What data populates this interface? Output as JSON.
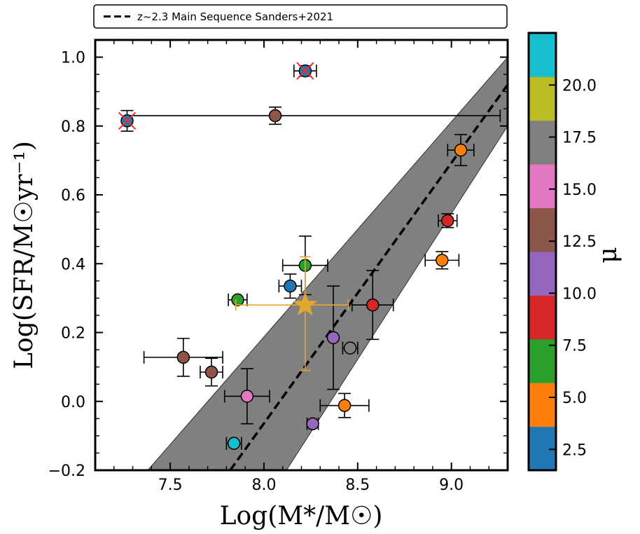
{
  "chart_data": {
    "type": "scatter",
    "title": "",
    "xlabel": "Log(M*/M☉)",
    "ylabel": "Log(SFR/M☉yr⁻¹)",
    "xlim": [
      7.1,
      9.3
    ],
    "ylim": [
      -0.2,
      1.05
    ],
    "x_ticks": [
      7.5,
      8.0,
      8.5,
      9.0
    ],
    "y_ticks": [
      -0.2,
      0.0,
      0.2,
      0.4,
      0.6,
      0.8,
      1.0
    ],
    "x_tick_labels": [
      "7.5",
      "8.0",
      "8.5",
      "9.0"
    ],
    "y_tick_labels": [
      "−0.2",
      "0.0",
      "0.2",
      "0.4",
      "0.6",
      "0.8",
      "1.0"
    ],
    "legend": {
      "position": "top",
      "entries": [
        {
          "label": "z~2.3 Main Sequence Sanders+2021",
          "style": "dashed",
          "color": "#000000"
        }
      ]
    },
    "main_sequence": {
      "label": "z~2.3 Main Sequence Sanders+2021",
      "line": [
        [
          7.82,
          -0.2
        ],
        [
          9.3,
          0.92
        ]
      ],
      "band_upper": [
        [
          7.38,
          -0.2
        ],
        [
          9.3,
          1.0
        ]
      ],
      "band_lower": [
        [
          8.12,
          -0.2
        ],
        [
          9.3,
          0.8
        ]
      ],
      "band_color": "#808080"
    },
    "points": [
      {
        "x": 7.27,
        "y": 0.815,
        "xerr": 0,
        "yerr": 0.03,
        "color": "#1f77b4",
        "crossed": true
      },
      {
        "x": 8.22,
        "y": 0.96,
        "xerr": 0.06,
        "yerr": 0.015,
        "color": "#1f77b4",
        "crossed": true
      },
      {
        "x": 8.06,
        "y": 0.83,
        "xerr": 0,
        "yerr": 0.025,
        "color": "#8c564b"
      },
      {
        "x": 9.05,
        "y": 0.73,
        "xerr": 0.07,
        "yerr": 0.045,
        "color": "#ff7f0e"
      },
      {
        "x": 8.98,
        "y": 0.525,
        "xerr": 0.05,
        "yerr": 0.02,
        "color": "#d62728"
      },
      {
        "x": 8.95,
        "y": 0.41,
        "xerr": 0.09,
        "yerr": 0.025,
        "color": "#ff7f0e"
      },
      {
        "x": 8.22,
        "y": 0.395,
        "xerr": 0.12,
        "yerr": 0.085,
        "color": "#2ca02c"
      },
      {
        "x": 8.14,
        "y": 0.335,
        "xerr": 0.06,
        "yerr": 0.035,
        "color": "#1f77b4"
      },
      {
        "x": 7.86,
        "y": 0.295,
        "xerr": 0.05,
        "yerr": 0,
        "color": "#2ca02c"
      },
      {
        "x": 8.58,
        "y": 0.28,
        "xerr": 0.11,
        "yerr": 0.1,
        "color": "#d62728"
      },
      {
        "x": 8.37,
        "y": 0.185,
        "xerr": 0,
        "yerr": 0.15,
        "color": "#9467bd"
      },
      {
        "x": 8.46,
        "y": 0.155,
        "xerr": 0.04,
        "yerr": 0,
        "color": "#7f7f7f"
      },
      {
        "x": 7.57,
        "y": 0.128,
        "xerr": 0.21,
        "yerr": 0.055,
        "color": "#8c564b"
      },
      {
        "x": 7.72,
        "y": 0.085,
        "xerr": 0.06,
        "yerr": 0.04,
        "color": "#8c564b"
      },
      {
        "x": 7.91,
        "y": 0.015,
        "xerr": 0.12,
        "yerr": 0.08,
        "color": "#e377c2"
      },
      {
        "x": 8.43,
        "y": -0.012,
        "xerr": 0.13,
        "yerr": 0.035,
        "color": "#ff7f0e"
      },
      {
        "x": 8.26,
        "y": -0.065,
        "xerr": 0.03,
        "yerr": 0,
        "color": "#9467bd"
      },
      {
        "x": 7.84,
        "y": -0.122,
        "xerr": 0.04,
        "yerr": 0,
        "color": "#17becf"
      }
    ],
    "horizontal_line": {
      "y": 0.83,
      "x_range": [
        7.27,
        9.26
      ],
      "color": "#000000"
    },
    "stack_star": {
      "x": 8.22,
      "y": 0.28,
      "xerr": [
        0.37,
        0.23
      ],
      "yerr": [
        0.19,
        0.14
      ],
      "color": "#e0a82e"
    },
    "colorbar": {
      "label": "μ",
      "range": [
        1.5,
        22.5
      ],
      "ticks": [
        2.5,
        5.0,
        7.5,
        10.0,
        12.5,
        15.0,
        17.5,
        20.0
      ],
      "tick_labels": [
        "2.5",
        "5.0",
        "7.5",
        "10.0",
        "12.5",
        "15.0",
        "17.5",
        "20.0"
      ],
      "segments": [
        {
          "from": 1.5,
          "to": 3.6,
          "color": "#1f77b4"
        },
        {
          "from": 3.6,
          "to": 5.7,
          "color": "#ff7f0e"
        },
        {
          "from": 5.7,
          "to": 7.8,
          "color": "#2ca02c"
        },
        {
          "from": 7.8,
          "to": 9.9,
          "color": "#d62728"
        },
        {
          "from": 9.9,
          "to": 12.0,
          "color": "#9467bd"
        },
        {
          "from": 12.0,
          "to": 14.1,
          "color": "#8c564b"
        },
        {
          "from": 14.1,
          "to": 16.2,
          "color": "#e377c2"
        },
        {
          "from": 16.2,
          "to": 18.3,
          "color": "#7f7f7f"
        },
        {
          "from": 18.3,
          "to": 20.4,
          "color": "#bcbd22"
        },
        {
          "from": 20.4,
          "to": 22.5,
          "color": "#17becf"
        }
      ]
    }
  }
}
